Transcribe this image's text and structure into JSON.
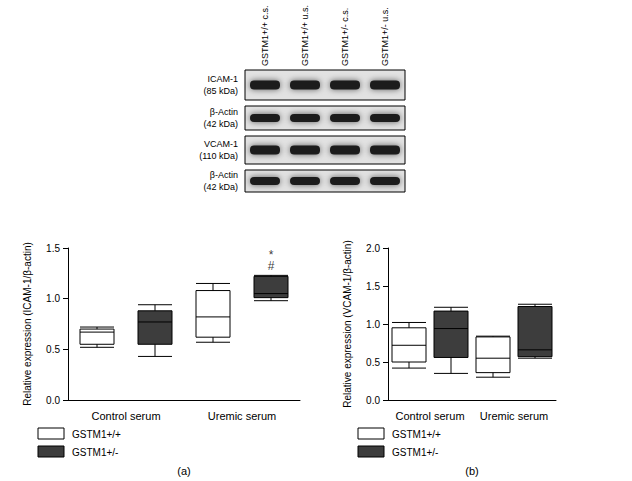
{
  "blot": {
    "lanes": [
      "GSTM1+/+ c.s.",
      "GSTM1+/+ u.s.",
      "GSTM1+/- c.s.",
      "GSTM1+/- u.s."
    ],
    "rows": [
      {
        "protein": "ICAM-1",
        "size": "(85 kDa)"
      },
      {
        "protein": "β-Actin",
        "size": "(42 kDa)"
      },
      {
        "protein": "VCAM-1",
        "size": "(110 kDa)"
      },
      {
        "protein": "β-Actin",
        "size": "(42 kDa)"
      }
    ]
  },
  "chart_data": [
    {
      "type": "boxplot",
      "panel": "(a)",
      "y_label": "Relative expression (ICAM-1/β-actin)",
      "categories": [
        "Control serum",
        "Uremic serum"
      ],
      "series": [
        {
          "name": "GSTM1+/+",
          "color": "#ffffff",
          "values": [
            [
              0.52,
              0.55,
              0.67,
              0.7,
              0.72
            ],
            [
              0.57,
              0.62,
              0.82,
              1.08,
              1.15
            ]
          ]
        },
        {
          "name": "GSTM1+/-",
          "color": "#3d3d3d",
          "values": [
            [
              0.43,
              0.55,
              0.77,
              0.88,
              0.94
            ],
            [
              0.98,
              1.01,
              1.05,
              1.22,
              1.23
            ]
          ]
        }
      ],
      "annotations": [
        {
          "text": "*",
          "category": "Uremic serum",
          "series": "GSTM1+/-"
        },
        {
          "text": "#",
          "category": "Uremic serum",
          "series": "GSTM1+/-"
        }
      ],
      "ylim": [
        0,
        1.5
      ],
      "yticks": [
        {
          "value": 0,
          "label": "0.0"
        },
        0.5,
        {
          "value": 1,
          "label": "1.0"
        },
        1.5
      ],
      "grid": false,
      "legend": "bottom left"
    },
    {
      "type": "boxplot",
      "panel": "(b)",
      "y_label": "Relative expression (VCAM-1/β-actin)",
      "categories": [
        "Control serum",
        "Uremic serum"
      ],
      "series": [
        {
          "name": "GSTM1+/+",
          "color": "#ffffff",
          "values": [
            [
              0.42,
              0.5,
              0.72,
              0.95,
              1.02
            ],
            [
              0.3,
              0.36,
              0.55,
              0.83,
              0.84
            ]
          ]
        },
        {
          "name": "GSTM1+/-",
          "color": "#3d3d3d",
          "values": [
            [
              0.35,
              0.56,
              0.94,
              1.17,
              1.22
            ],
            [
              0.55,
              0.57,
              0.66,
              1.23,
              1.26
            ]
          ]
        }
      ],
      "ylim": [
        0,
        2
      ],
      "yticks": [
        {
          "value": 0,
          "label": "0.0"
        },
        0.5,
        {
          "value": 1,
          "label": "1.0"
        },
        1.5,
        {
          "value": 2,
          "label": "2.0"
        }
      ],
      "grid": false,
      "legend": "bottom left"
    }
  ]
}
